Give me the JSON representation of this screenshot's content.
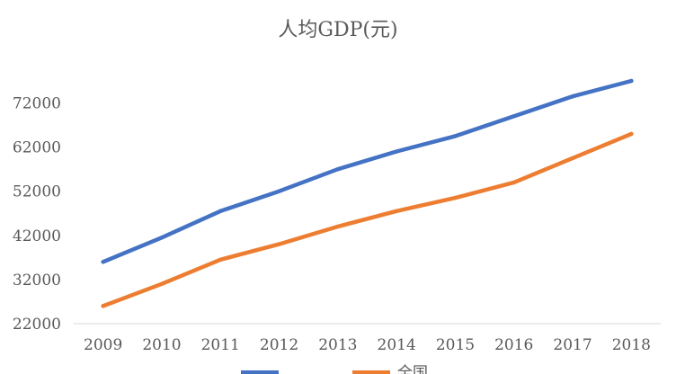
{
  "chart_data": {
    "type": "line",
    "title": "人均GDP(元)",
    "categories": [
      "2009",
      "2010",
      "2011",
      "2012",
      "2013",
      "2014",
      "2015",
      "2016",
      "2017",
      "2018"
    ],
    "ylim": [
      22000,
      77000
    ],
    "yticks": [
      22000,
      32000,
      42000,
      52000,
      62000,
      72000
    ],
    "grid": false,
    "legend_position": "bottom",
    "series": [
      {
        "name": "",
        "color": "#4472C4",
        "values": [
          36000,
          41500,
          47500,
          52000,
          57000,
          61000,
          64500,
          69000,
          73500,
          77000
        ]
      },
      {
        "name": "全国",
        "color": "#ED7D31",
        "values": [
          26000,
          31000,
          36500,
          40000,
          44000,
          47500,
          50500,
          54000,
          59500,
          65000
        ]
      }
    ]
  }
}
